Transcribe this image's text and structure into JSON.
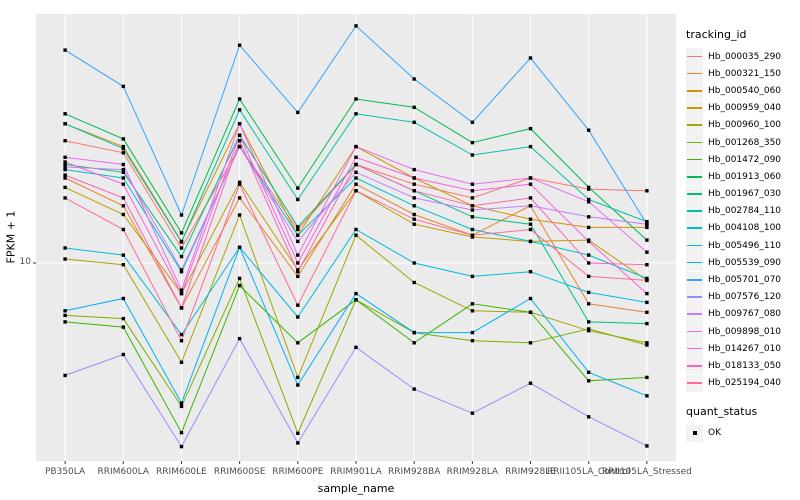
{
  "chart_data": {
    "type": "line",
    "xlabel": "sample_name",
    "ylabel": "FPKM + 1",
    "y_scale": "log10",
    "y_tick_labels": [
      "10"
    ],
    "y_tick_values": [
      10
    ],
    "ylim_log": [
      0.91,
      204
    ],
    "grid": "major-only",
    "panel_bg": "#EBEBEB",
    "grid_color": "#FFFFFF",
    "tick_label_color": "#4D4D4D",
    "marker": {
      "shape": "square",
      "color": "#000000",
      "size": 3.4
    },
    "legend_position": "right",
    "categories": [
      "PB350LA",
      "RRIM600LA",
      "RRIM600LE",
      "RRIM600SE",
      "RRIM600PE",
      "RRIM901LA",
      "RRIM928BA",
      "RRIM928LA",
      "RRIM928LE",
      "RRII105LA_Control",
      "RRII105LA_Stressed"
    ],
    "series": [
      {
        "name": "Hb_000035_290",
        "color": "#F8766D",
        "values": [
          44,
          38,
          12,
          41,
          15,
          33,
          26,
          22,
          28,
          24.5,
          24
        ]
      },
      {
        "name": "Hb_000321_150",
        "color": "#EA8331",
        "values": [
          28,
          20,
          5.8,
          22,
          8.5,
          26,
          18,
          14,
          20,
          6.1,
          5.5
        ]
      },
      {
        "name": "Hb_000540_060",
        "color": "#D89000",
        "values": [
          54,
          41,
          13,
          54,
          14,
          41,
          28,
          20,
          17,
          15.4,
          15.4
        ]
      },
      {
        "name": "Hb_000959_040",
        "color": "#C09B00",
        "values": [
          25,
          18,
          6.9,
          26.6,
          9.2,
          24,
          16,
          13.7,
          13,
          13.2,
          8.1
        ]
      },
      {
        "name": "Hb_000960_100",
        "color": "#A3A500",
        "values": [
          10.5,
          9.8,
          3.0,
          17.9,
          2.5,
          14,
          7.9,
          5.6,
          5.5,
          4.4,
          3.8
        ]
      },
      {
        "name": "Hb_001268_350",
        "color": "#7CAE00",
        "values": [
          5.3,
          5.1,
          1.76,
          8.3,
          1.27,
          6.4,
          4.3,
          3.9,
          3.8,
          4.5,
          3.7
        ]
      },
      {
        "name": "Hb_001472_090",
        "color": "#39B600",
        "values": [
          4.9,
          4.6,
          1.28,
          7.6,
          3.8,
          6.4,
          3.8,
          6.1,
          5.5,
          2.4,
          2.5
        ]
      },
      {
        "name": "Hb_001913_060",
        "color": "#00BB4E",
        "values": [
          61,
          45,
          14.4,
          73,
          24.8,
          73,
          66,
          43,
          51,
          25,
          13.2
        ]
      },
      {
        "name": "Hb_001967_030",
        "color": "#00BF7D",
        "values": [
          33,
          30,
          10.8,
          47,
          15.5,
          33,
          24,
          17.5,
          16,
          4.9,
          4.8
        ]
      },
      {
        "name": "Hb_002784_110",
        "color": "#00C1A3",
        "values": [
          54,
          40,
          12.9,
          64,
          21.6,
          61,
          55,
          37,
          41,
          21.6,
          16.5
        ]
      },
      {
        "name": "Hb_004108_100",
        "color": "#00BFC4",
        "values": [
          31,
          28,
          9.0,
          41,
          14,
          28,
          20,
          15,
          13,
          11,
          8.3
        ]
      },
      {
        "name": "Hb_005496_110",
        "color": "#00BAE0",
        "values": [
          12,
          11,
          4.2,
          12.1,
          5.2,
          15,
          10,
          8.5,
          9,
          7,
          6.2
        ]
      },
      {
        "name": "Hb_005539_090",
        "color": "#00B0F6",
        "values": [
          5.6,
          6.5,
          1.83,
          12.1,
          2.28,
          6.9,
          4.3,
          4.3,
          6.5,
          2.66,
          2.0
        ]
      },
      {
        "name": "Hb_005701_070",
        "color": "#35A2FF",
        "values": [
          132,
          85,
          17.9,
          140,
          62,
          177,
          93,
          55,
          120,
          50,
          16
        ]
      },
      {
        "name": "Hb_007576_120",
        "color": "#9590FF",
        "values": [
          2.56,
          3.3,
          1.08,
          4.0,
          1.13,
          3.6,
          2.17,
          1.62,
          2.33,
          1.55,
          1.09
        ]
      },
      {
        "name": "Hb_009767_080",
        "color": "#C77CFF",
        "values": [
          32,
          31,
          9.2,
          41,
          13,
          30,
          22,
          19,
          20,
          17.5,
          16
        ]
      },
      {
        "name": "Hb_009898_010",
        "color": "#E76BF3",
        "values": [
          36,
          33,
          7.2,
          54,
          11,
          41,
          31,
          26,
          28,
          21,
          11.4
        ]
      },
      {
        "name": "Hb_014267_010",
        "color": "#FA62DB",
        "values": [
          34,
          26,
          6.9,
          47,
          10,
          36,
          28,
          24,
          26,
          13,
          6.9
        ]
      },
      {
        "name": "Hb_018133_050",
        "color": "#FF62BC",
        "values": [
          29,
          22,
          5.8,
          44,
          9,
          33,
          24,
          20,
          22,
          10,
          9.8
        ]
      },
      {
        "name": "Hb_025194_040",
        "color": "#FF6A98",
        "values": [
          22,
          15,
          3.9,
          26,
          6,
          24,
          17,
          14,
          15,
          8.5,
          8.1
        ]
      }
    ],
    "legend": {
      "tracking_id_title": "tracking_id",
      "quant_status_title": "quant_status",
      "quant_status_items": [
        {
          "label": "OK"
        }
      ]
    }
  }
}
